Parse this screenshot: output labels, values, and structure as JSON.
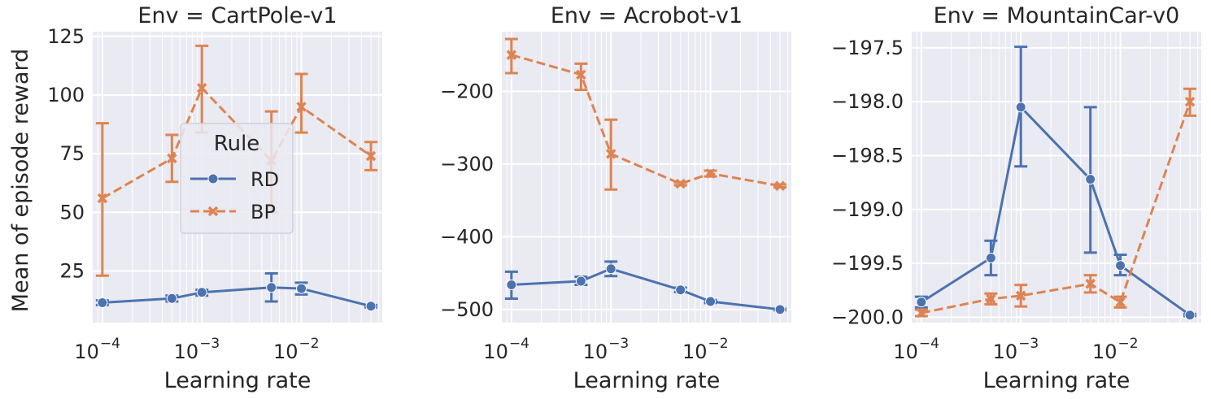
{
  "shared": {
    "xlabel": "Learning rate",
    "ylabel": "Mean of episode reward",
    "x_scale": "log",
    "legend_title": "Rule",
    "legend_location": "center (first panel)",
    "grid": true,
    "colors": {
      "RD": "#4c72b0",
      "BP": "#dd8452",
      "background": "#eaeaf2",
      "grid": "#ffffff"
    }
  },
  "chart_data": [
    {
      "type": "line",
      "title": "Env = CartPole-v1",
      "xlabel": "Learning rate",
      "ylabel": "Mean of episode reward",
      "x": [
        0.0001,
        0.0005,
        0.001,
        0.005,
        0.01,
        0.05
      ],
      "x_tick_labels": [
        {
          "base": "10",
          "exp": "−4",
          "value": 0.0001
        },
        {
          "base": "10",
          "exp": "−3",
          "value": 0.001
        },
        {
          "base": "10",
          "exp": "−2",
          "value": 0.01
        }
      ],
      "y_ticks": [
        {
          "label": "25",
          "value": 25
        },
        {
          "label": "50",
          "value": 50
        },
        {
          "label": "75",
          "value": 75
        },
        {
          "label": "100",
          "value": 100
        },
        {
          "label": "125",
          "value": 125
        }
      ],
      "xlim": [
        8e-05,
        0.065
      ],
      "ylim": [
        3,
        127
      ],
      "series": [
        {
          "name": "RD",
          "style": "solid",
          "marker": "circle",
          "values": [
            11.5,
            13.3,
            15.9,
            18,
            17.5,
            10
          ],
          "err_low": [
            10.5,
            12,
            14.5,
            12,
            15,
            9.5
          ],
          "err_high": [
            12.5,
            14.5,
            17,
            24,
            20,
            10.5
          ]
        },
        {
          "name": "BP",
          "style": "dashed",
          "marker": "x",
          "values": [
            56,
            73,
            103,
            72,
            95,
            74
          ],
          "err_low": [
            23,
            63,
            84,
            50,
            84,
            68
          ],
          "err_high": [
            88,
            83,
            121,
            93,
            109,
            80
          ]
        }
      ],
      "legend": {
        "title": "Rule",
        "entries": [
          "RD",
          "BP"
        ]
      }
    },
    {
      "type": "line",
      "title": "Env = Acrobot-v1",
      "xlabel": "Learning rate",
      "ylabel": "",
      "x": [
        0.0001,
        0.0005,
        0.001,
        0.005,
        0.01,
        0.05
      ],
      "x_tick_labels": [
        {
          "base": "10",
          "exp": "−4",
          "value": 0.0001
        },
        {
          "base": "10",
          "exp": "−3",
          "value": 0.001
        },
        {
          "base": "10",
          "exp": "−2",
          "value": 0.01
        }
      ],
      "y_ticks": [
        {
          "label": "−500",
          "value": -500
        },
        {
          "label": "−400",
          "value": -400
        },
        {
          "label": "−300",
          "value": -300
        },
        {
          "label": "−200",
          "value": -200
        }
      ],
      "xlim": [
        8e-05,
        0.065
      ],
      "ylim": [
        -518,
        -118
      ],
      "series": [
        {
          "name": "RD",
          "style": "solid",
          "marker": "circle",
          "values": [
            -466,
            -461,
            -444,
            -473,
            -489,
            -500
          ],
          "err_low": [
            -485,
            -466,
            -454,
            -476,
            -491,
            -501
          ],
          "err_high": [
            -448,
            -455,
            -434,
            -470,
            -487,
            -499
          ]
        },
        {
          "name": "BP",
          "style": "dashed",
          "marker": "x",
          "values": [
            -150,
            -177,
            -286,
            -327,
            -313,
            -330
          ],
          "err_low": [
            -175,
            -198,
            -335,
            -329,
            -317,
            -332
          ],
          "err_high": [
            -128,
            -162,
            -239,
            -325,
            -309,
            -328
          ]
        }
      ]
    },
    {
      "type": "line",
      "title": "Env = MountainCar-v0",
      "xlabel": "Learning rate",
      "ylabel": "",
      "x": [
        0.0001,
        0.0005,
        0.001,
        0.005,
        0.01,
        0.05
      ],
      "x_tick_labels": [
        {
          "base": "10",
          "exp": "−4",
          "value": 0.0001
        },
        {
          "base": "10",
          "exp": "−3",
          "value": 0.001
        },
        {
          "base": "10",
          "exp": "−2",
          "value": 0.01
        }
      ],
      "y_ticks": [
        {
          "label": "−200.0",
          "value": -200
        },
        {
          "label": "−199.5",
          "value": -199.5
        },
        {
          "label": "−199.0",
          "value": -199
        },
        {
          "label": "−198.5",
          "value": -198.5
        },
        {
          "label": "−198.0",
          "value": -198
        },
        {
          "label": "−197.5",
          "value": -197.5
        }
      ],
      "xlim": [
        8e-05,
        0.065
      ],
      "ylim": [
        -200.05,
        -197.35
      ],
      "series": [
        {
          "name": "RD",
          "style": "solid",
          "marker": "circle",
          "values": [
            -199.86,
            -199.45,
            -198.05,
            -198.72,
            -199.52,
            -199.98
          ],
          "err_low": [
            -199.91,
            -199.61,
            -198.6,
            -199.4,
            -199.61,
            -199.99
          ],
          "err_high": [
            -199.81,
            -199.29,
            -197.49,
            -198.05,
            -199.42,
            -199.97
          ]
        },
        {
          "name": "BP",
          "style": "dashed",
          "marker": "x",
          "values": [
            -199.96,
            -199.83,
            -199.8,
            -199.69,
            -199.86,
            -198.0
          ],
          "err_low": [
            -199.99,
            -199.88,
            -199.9,
            -199.77,
            -199.91,
            -198.13
          ],
          "err_high": [
            -199.93,
            -199.78,
            -199.7,
            -199.61,
            -199.81,
            -197.88
          ]
        }
      ]
    }
  ]
}
